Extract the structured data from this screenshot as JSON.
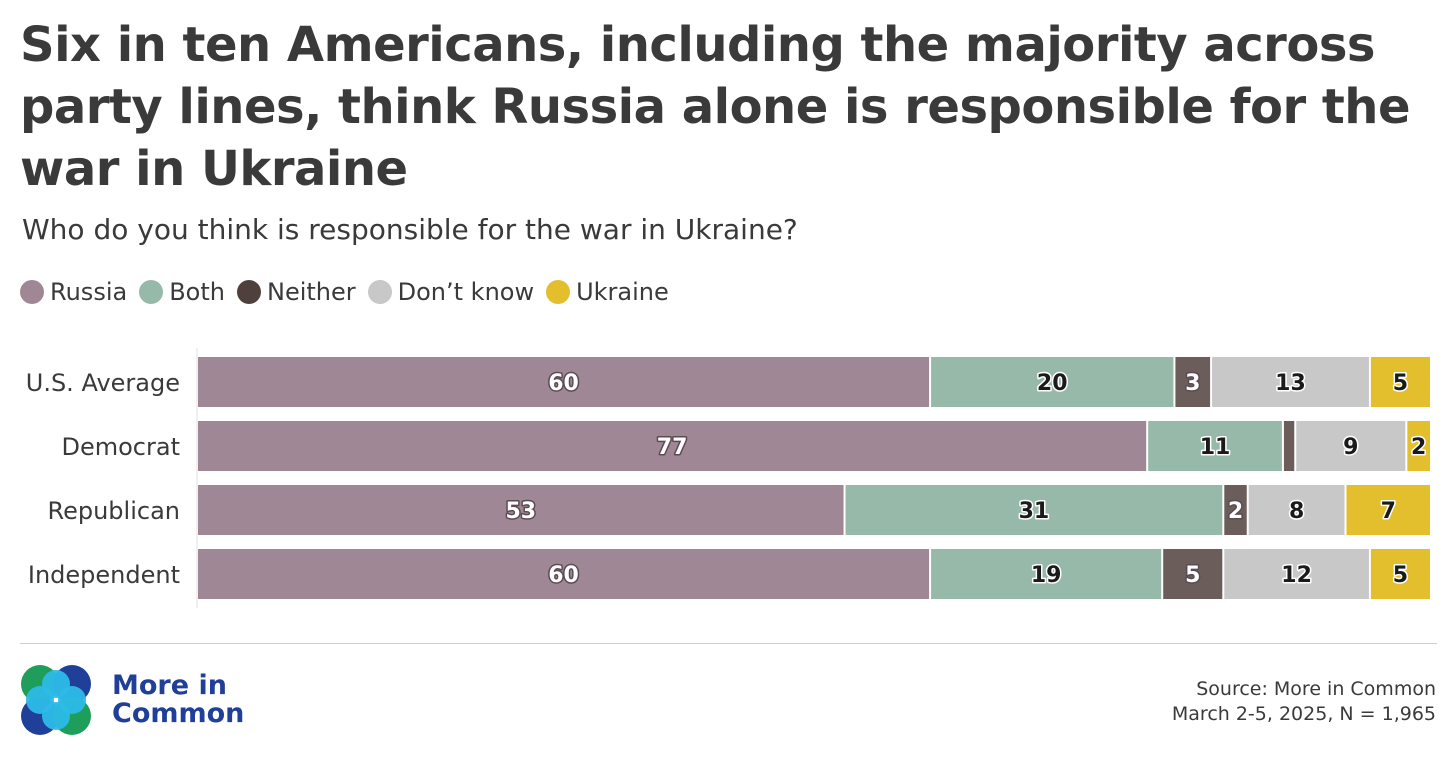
{
  "title": "Six in ten Americans, including the majority across party lines, think Russia alone is responsible for the war in Ukraine",
  "subtitle": "Who do you think is responsible for the war in Ukraine?",
  "legend": [
    {
      "label": "Russia",
      "color": "#a08795"
    },
    {
      "label": "Both",
      "color": "#97b9a9"
    },
    {
      "label": "Neither",
      "color": "#4f403b"
    },
    {
      "label": "Don’t know",
      "color": "#c8c8c8"
    },
    {
      "label": "Ukraine",
      "color": "#e3be2d"
    }
  ],
  "chart_data": {
    "type": "bar",
    "orientation": "horizontal",
    "stacked": true,
    "categories": [
      "U.S. Average",
      "Democrat",
      "Republican",
      "Independent"
    ],
    "series": [
      {
        "name": "Russia",
        "color": "#a08795",
        "label_color": "#ffffff",
        "values": [
          60,
          77,
          53,
          60
        ]
      },
      {
        "name": "Both",
        "color": "#97b9a9",
        "label_color": "#1a1a1a",
        "values": [
          20,
          11,
          31,
          19
        ]
      },
      {
        "name": "Neither",
        "color": "#6b5e5a",
        "label_color": "#ffffff",
        "values": [
          3,
          1,
          2,
          5
        ],
        "labels": [
          "3",
          "",
          "2",
          "5"
        ]
      },
      {
        "name": "Don’t know",
        "color": "#c8c8c8",
        "label_color": "#1a1a1a",
        "values": [
          13,
          9,
          8,
          12
        ]
      },
      {
        "name": "Ukraine",
        "color": "#e3be2d",
        "label_color": "#1a1a1a",
        "values": [
          5,
          2,
          7,
          5
        ]
      }
    ],
    "grid": false,
    "legend_position": "top-left"
  },
  "logo": {
    "line1": "More in",
    "line2": "Common"
  },
  "source": {
    "line1": "Source: More in Common",
    "line2": "March 2-5, 2025, N = 1,965"
  }
}
